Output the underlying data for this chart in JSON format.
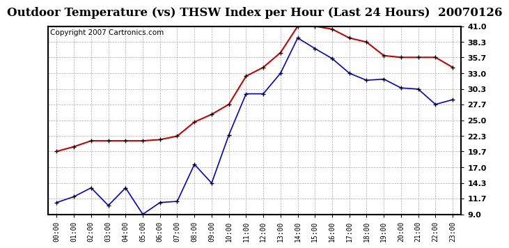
{
  "title": "Outdoor Temperature (vs) THSW Index per Hour (Last 24 Hours)  20070126",
  "copyright": "Copyright 2007 Cartronics.com",
  "hours": [
    "00:00",
    "01:00",
    "02:00",
    "03:00",
    "04:00",
    "05:00",
    "06:00",
    "07:00",
    "08:00",
    "09:00",
    "10:00",
    "11:00",
    "12:00",
    "13:00",
    "14:00",
    "15:00",
    "16:00",
    "17:00",
    "18:00",
    "19:00",
    "20:00",
    "21:00",
    "22:00",
    "23:00"
  ],
  "temp_blue": [
    11.0,
    12.0,
    13.5,
    10.5,
    13.5,
    9.0,
    11.0,
    11.2,
    17.5,
    14.3,
    22.5,
    29.5,
    29.5,
    33.0,
    39.0,
    37.2,
    35.5,
    33.0,
    31.8,
    32.0,
    30.5,
    30.3,
    27.7,
    28.5
  ],
  "thsw_red": [
    19.7,
    20.5,
    21.5,
    21.5,
    21.5,
    21.5,
    21.7,
    22.3,
    24.7,
    26.0,
    27.7,
    32.5,
    34.0,
    36.5,
    41.0,
    41.0,
    40.5,
    39.0,
    38.3,
    36.0,
    35.7,
    35.7,
    35.7,
    34.0
  ],
  "ylim": [
    9.0,
    41.0
  ],
  "yticks": [
    9.0,
    11.7,
    14.3,
    17.0,
    19.7,
    22.3,
    25.0,
    27.7,
    30.3,
    33.0,
    35.7,
    38.3,
    41.0
  ],
  "blue_color": "#0000dd",
  "red_color": "#cc0000",
  "grid_color": "#aaaaaa",
  "bg_color": "#ffffff",
  "title_fontsize": 12,
  "copyright_fontsize": 7.5
}
